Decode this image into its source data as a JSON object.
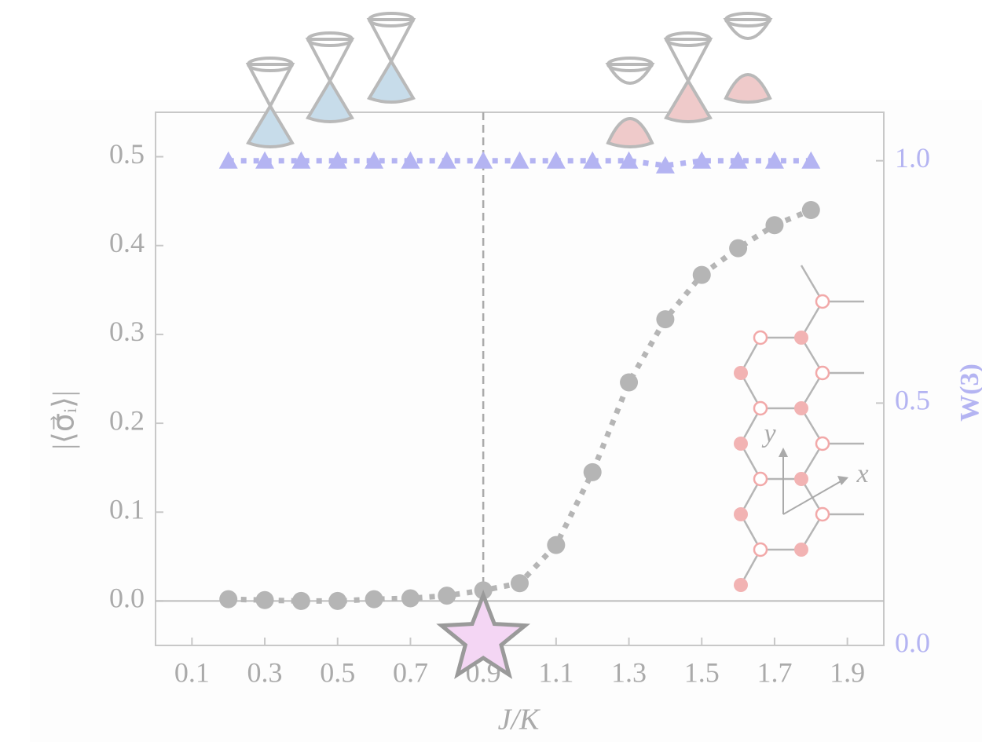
{
  "chart_data": {
    "type": "line",
    "x_label": "J/K",
    "y_label": "|⟨σ⃗ᵢ⟩|",
    "y2_label": "W(3)",
    "x": [
      0.2,
      0.3,
      0.4,
      0.5,
      0.6,
      0.7,
      0.8,
      0.9,
      1.0,
      1.1,
      1.2,
      1.3,
      1.4,
      1.5,
      1.6,
      1.7,
      1.8
    ],
    "series": [
      {
        "color": "#b5b5b5",
        "marker": "circle",
        "values": [
          0.002,
          0.001,
          0.0,
          0.0,
          0.002,
          0.003,
          0.006,
          0.012,
          0.02,
          0.063,
          0.145,
          0.246,
          0.317,
          0.367,
          0.397,
          0.423,
          0.44
        ]
      },
      {
        "color": "#b4b4f2",
        "marker": "triangle",
        "axis": "y2",
        "values": [
          1.0,
          1.0,
          1.0,
          1.0,
          1.0,
          1.0,
          1.0,
          1.0,
          1.0,
          1.0,
          1.0,
          1.0,
          0.99,
          1.0,
          1.0,
          1.0,
          1.0
        ]
      }
    ],
    "xlim": [
      0.0,
      2.0
    ],
    "xticks": [
      0.1,
      0.3,
      0.5,
      0.7,
      0.9,
      1.1,
      1.3,
      1.5,
      1.7,
      1.9
    ],
    "ylim": [
      -0.05,
      0.55
    ],
    "yticks": [
      {
        "value": 0,
        "label": "0.0"
      },
      0.1,
      0.2,
      0.3,
      0.4,
      0.5
    ],
    "y2lim": [
      0,
      1.1
    ],
    "y2ticks": [
      {
        "value": 0,
        "label": "0.0"
      },
      0.5,
      {
        "value": 1,
        "label": "1.0"
      }
    ],
    "critical_x": 0.9,
    "inset_axis_labels": [
      "x",
      "y"
    ]
  }
}
